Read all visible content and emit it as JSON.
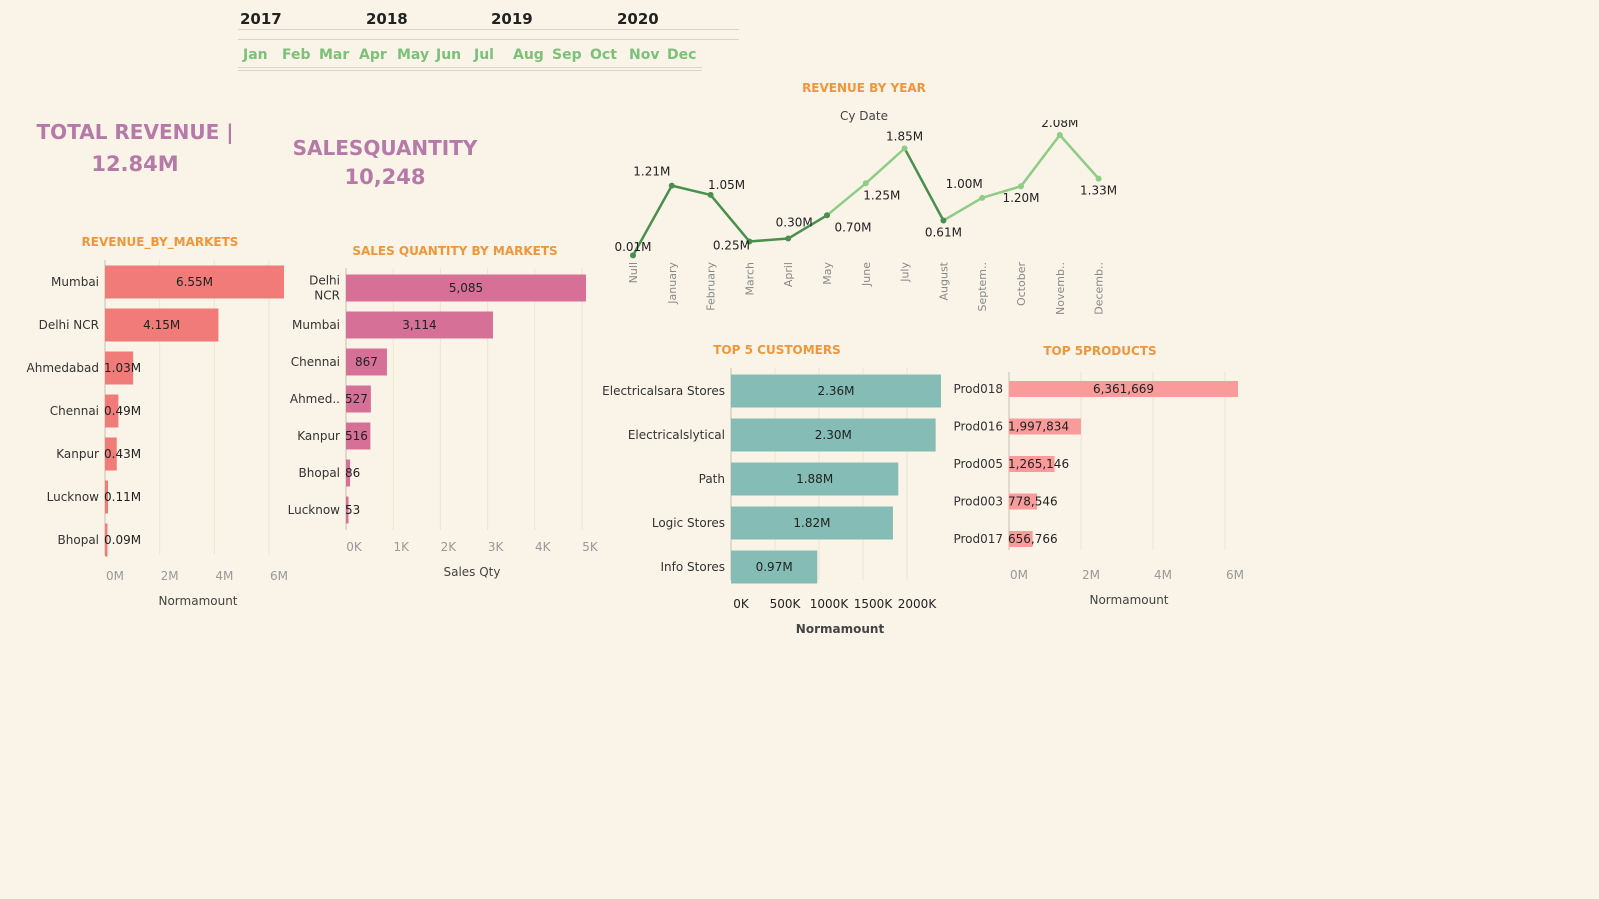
{
  "filters": {
    "years": [
      "2017",
      "2018",
      "2019",
      "2020"
    ],
    "months": [
      "Jan",
      "Feb",
      "Mar",
      "Apr",
      "May",
      "Jun",
      "Jul",
      "Aug",
      "Sep",
      "Oct",
      "Nov",
      "Dec"
    ]
  },
  "kpis": {
    "total_revenue_label": "TOTAL REVENUE |",
    "total_revenue_value": "12.84M",
    "sales_quantity_label": "SALESQUANTITY",
    "sales_quantity_value": "10,248"
  },
  "colors": {
    "background": "#f9f4e7",
    "markets_bar": "#f07b78",
    "qty_bar": "#d67097",
    "customers_bar": "#85bdb6",
    "products_bar": "#fa9b9b",
    "line_dark": "#4a8f4e",
    "line_light": "#8fcc85",
    "title_orange": "#f0963a",
    "kpi_purple": "#b57aa8",
    "filter_green": "#7cc07a"
  },
  "chart_data": [
    {
      "id": "revenue_by_markets",
      "type": "bar",
      "orientation": "horizontal",
      "title": "REVENUE_BY_MARKETS",
      "categories": [
        "Mumbai",
        "Delhi NCR",
        "Ahmedabad",
        "Chennai",
        "Kanpur",
        "Lucknow",
        "Bhopal"
      ],
      "values": [
        6.55,
        4.15,
        1.03,
        0.49,
        0.43,
        0.11,
        0.09
      ],
      "data_labels": [
        "6.55M",
        "4.15M",
        "1.03M",
        "0.49M",
        "0.43M",
        "0.11M",
        "0.09M"
      ],
      "xlabel": "Normamount",
      "ticks": [
        "0M",
        "2M",
        "4M",
        "6M"
      ],
      "xlim": [
        0,
        6.55
      ]
    },
    {
      "id": "sales_quantity_by_markets",
      "type": "bar",
      "orientation": "horizontal",
      "title": "SALES QUANTITY  BY MARKETS",
      "categories": [
        "Delhi NCR",
        "Mumbai",
        "Chennai",
        "Ahmed..",
        "Kanpur",
        "Bhopal",
        "Lucknow"
      ],
      "values": [
        5085,
        3114,
        867,
        527,
        516,
        86,
        53
      ],
      "data_labels": [
        "5,085",
        "3,114",
        "867",
        "527",
        "516",
        "86",
        "53"
      ],
      "xlabel": "Sales Qty",
      "ticks": [
        "0K",
        "1K",
        "2K",
        "3K",
        "4K",
        "5K"
      ],
      "xlim": [
        0,
        5085
      ]
    },
    {
      "id": "revenue_by_year",
      "type": "line",
      "title": "REVENUE BY YEAR",
      "subtitle": "Cy Date",
      "categories": [
        "Null",
        "January",
        "February",
        "March",
        "April",
        "May",
        "June",
        "July",
        "August",
        "Septem..",
        "October",
        "Novemb..",
        "Decemb.."
      ],
      "values": [
        0.01,
        1.21,
        1.05,
        0.25,
        0.3,
        0.7,
        1.25,
        1.85,
        0.61,
        1.0,
        1.2,
        2.08,
        1.33
      ],
      "data_labels": [
        "0.01M",
        "1.21M",
        "1.05M",
        "0.25M",
        "0.30M",
        "0.70M",
        "1.25M",
        "1.85M",
        "0.61M",
        "1.00M",
        "1.20M",
        "2.08M",
        "1.33M"
      ],
      "ylim": [
        0,
        2.08
      ]
    },
    {
      "id": "top_5_customers",
      "type": "bar",
      "orientation": "horizontal",
      "title": "TOP 5 CUSTOMERS",
      "categories": [
        "Electricalsara Stores",
        "Electricalslytical",
        "Path",
        "Logic Stores",
        "Info Stores"
      ],
      "values": [
        2.36,
        2.3,
        1.88,
        1.82,
        0.97
      ],
      "data_labels": [
        "2.36M",
        "2.30M",
        "1.88M",
        "1.82M",
        "0.97M"
      ],
      "xlabel": "Normamount",
      "ticks": [
        "0K",
        "500K",
        "1000K",
        "1500K",
        "2000K"
      ],
      "xlim": [
        0,
        2.36
      ]
    },
    {
      "id": "top_5_products",
      "type": "bar",
      "orientation": "horizontal",
      "title": "TOP 5PRODUCTS",
      "categories": [
        "Prod018",
        "Prod016",
        "Prod005",
        "Prod003",
        "Prod017"
      ],
      "values": [
        6361669,
        1997834,
        1265146,
        778546,
        656766
      ],
      "data_labels": [
        "6,361,669",
        "1,997,834",
        "1,265,146",
        "778,546",
        "656,766"
      ],
      "xlabel": "Normamount",
      "ticks": [
        "0M",
        "2M",
        "4M",
        "6M"
      ],
      "xlim": [
        0,
        6361669
      ]
    }
  ]
}
